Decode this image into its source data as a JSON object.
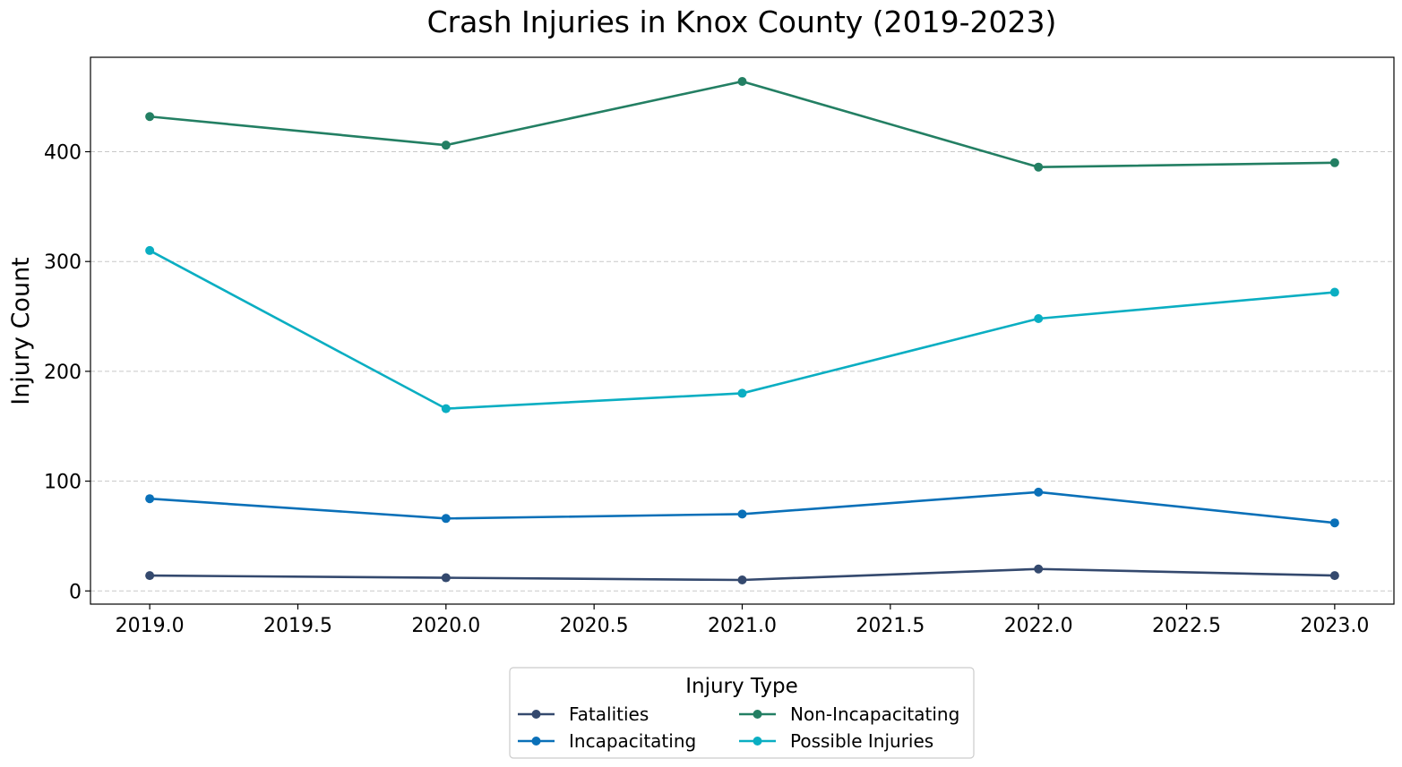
{
  "chart_data": {
    "type": "line",
    "title": "Crash Injuries in Knox County (2019-2023)",
    "xlabel": "",
    "ylabel": "Injury Count",
    "x": [
      2019,
      2020,
      2021,
      2022,
      2023
    ],
    "xlim": [
      2018.8,
      2023.2
    ],
    "ylim": [
      -12,
      486
    ],
    "xticks": [
      2019.0,
      2019.5,
      2020.0,
      2020.5,
      2021.0,
      2021.5,
      2022.0,
      2022.5,
      2023.0
    ],
    "xtick_labels": [
      "2019.0",
      "2019.5",
      "2020.0",
      "2020.5",
      "2021.0",
      "2021.5",
      "2022.0",
      "2022.5",
      "2023.0"
    ],
    "yticks": [
      0,
      100,
      200,
      300,
      400
    ],
    "ytick_labels": [
      "0",
      "100",
      "200",
      "300",
      "400"
    ],
    "grid": "horizontal dashed",
    "series": [
      {
        "name": "Fatalities",
        "color": "#34496e",
        "values": [
          14,
          12,
          10,
          20,
          14
        ]
      },
      {
        "name": "Incapacitating",
        "color": "#0a70b8",
        "values": [
          84,
          66,
          70,
          90,
          62
        ]
      },
      {
        "name": "Non-Incapacitating",
        "color": "#237f63",
        "values": [
          432,
          406,
          464,
          386,
          390
        ]
      },
      {
        "name": "Possible Injuries",
        "color": "#0aaec2",
        "values": [
          310,
          166,
          180,
          248,
          272
        ]
      }
    ],
    "legend": {
      "title": "Injury Type",
      "placement": "bottom-center",
      "columns": 2
    }
  }
}
